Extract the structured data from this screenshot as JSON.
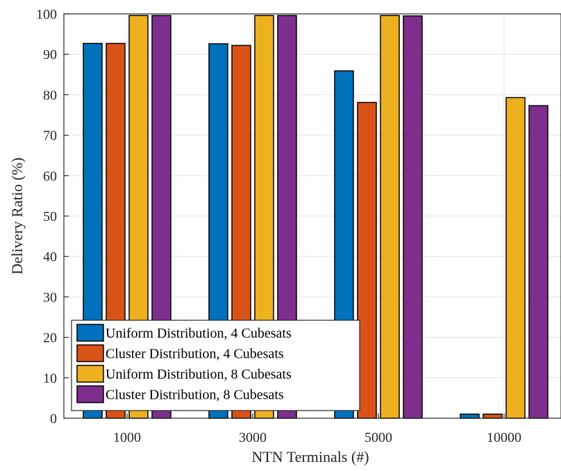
{
  "chart_data": {
    "type": "bar",
    "title": "",
    "xlabel": "NTN Terminals (#)",
    "ylabel": "Delivery Ratio (%)",
    "categories": [
      "1000",
      "3000",
      "5000",
      "10000"
    ],
    "ylim": [
      0,
      100
    ],
    "yticks": [
      0,
      10,
      20,
      30,
      40,
      50,
      60,
      70,
      80,
      90,
      100
    ],
    "grid": true,
    "legend_position": "bottom-left",
    "series": [
      {
        "name": "Uniform Distribution, 4 Cubesats",
        "color": "#0072BD",
        "values": [
          92.7,
          92.6,
          85.9,
          1.0
        ]
      },
      {
        "name": "Cluster Distribution, 4 Cubesats",
        "color": "#D95319",
        "values": [
          92.7,
          92.2,
          78.1,
          1.0
        ]
      },
      {
        "name": "Uniform Distribution, 8 Cubesats",
        "color": "#EDB120",
        "values": [
          99.6,
          99.6,
          99.6,
          79.3
        ]
      },
      {
        "name": "Cluster Distribution, 8 Cubesats",
        "color": "#7E2F8E",
        "values": [
          99.6,
          99.6,
          99.5,
          77.3
        ]
      }
    ]
  }
}
